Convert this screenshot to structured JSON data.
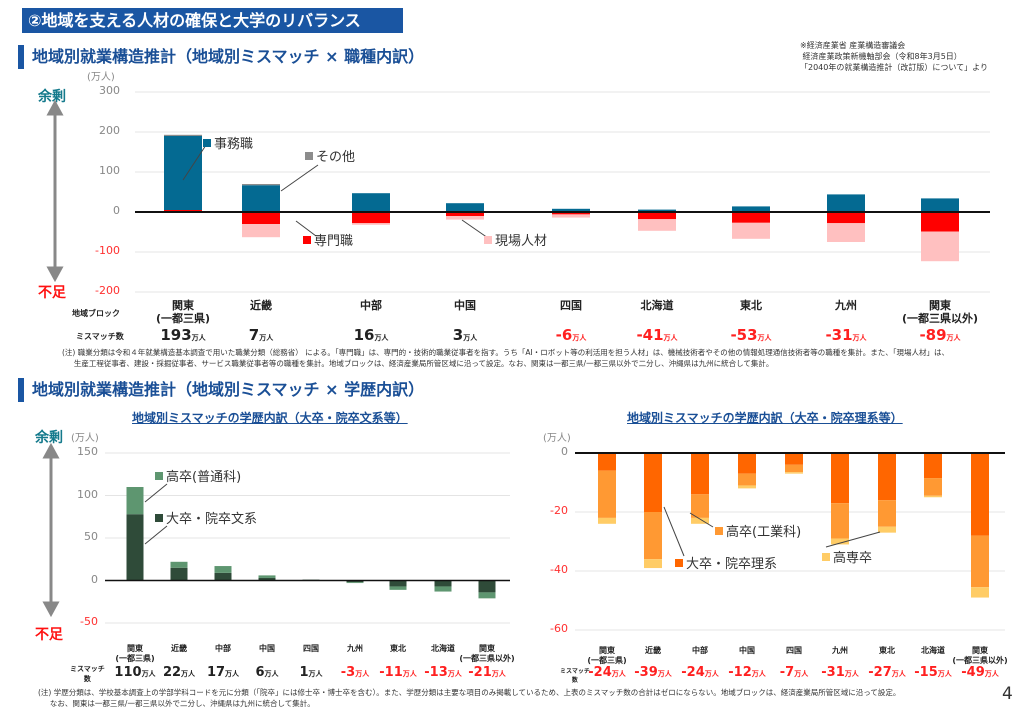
{
  "banner": "②地域を支える人材の確保と大学のリバランス",
  "source_note": "※経済産業省 産業構造審議会\n 経済産業政策新機軸部会（令和8年3月5日）\n「2040年の就業構造推計（改訂版）について」より",
  "surplus_label": "余剰",
  "shortage_label": "不足",
  "unit_label": "(万人)",
  "mismatch_unit": "万人",
  "page_number": "4",
  "section1": {
    "title": "地域別就業構造推計（地域別ミスマッチ × 職種内訳）",
    "region_row_label": "地域ブロック",
    "mismatch_row_label": "ミスマッチ数",
    "note": "(注) 職業分類は令和４年就業構造基本調査で用いた職業分類（総務省） による。「専門職」は、専門的・技術的職業従事者を指す。うち「AI・ロボット等の利活用を担う人材」は、機械技術者やその他の情報処理通信技術者等の職種を集計。また、「現場人材」は、\n     生産工程従事者、建設・採掘従事者、サービス職業従事者等の職種を集計。地域ブロックは、経済産業局所管区域に沿って設定。なお、関東は一都三県/一都三県以外で二分し、沖縄県は九州に統合して集計。"
  },
  "section2": {
    "title": "地域別就業構造推計（地域別ミスマッチ × 学歴内訳）",
    "mismatch_row_label": "ミスマッチ\n数",
    "note": "(注) 学歴分類は、学校基本調査上の学部学科コードを元に分類（「院卒」には修士卒・博士卒を含む）。また、学歴分類は主要な項目のみ掲載しているため、上表のミスマッチ数の合計はゼロにならない。地域ブロックは、経済産業局所管区域に沿って設定。\n     なお、関東は一都三県/一都三県以外で二分し、沖縄県は九州に統合して集計。"
  },
  "chart_data": [
    {
      "type": "bar",
      "stacked": true,
      "title": "",
      "ylabel": "(万人)",
      "ylim": [
        -200,
        300
      ],
      "yticks": [
        300,
        200,
        100,
        0,
        -100,
        -200
      ],
      "grid": true,
      "categories": [
        "関東\n(一都三県)",
        "近畿",
        "中部",
        "中国",
        "四国",
        "北海道",
        "東北",
        "九州",
        "関東\n(一都三県以外)"
      ],
      "series": [
        {
          "name": "専門職",
          "color": "#ff0000",
          "values": [
            5,
            -30,
            -28,
            -10,
            -6,
            -18,
            -27,
            -28,
            -49
          ]
        },
        {
          "name": "事務職",
          "color": "#046a92",
          "values": [
            185,
            67,
            47,
            22,
            8,
            6,
            14,
            44,
            34
          ]
        },
        {
          "name": "その他",
          "color": "#8c8c8c",
          "values": [
            3,
            3,
            0,
            0,
            0,
            0,
            0,
            0,
            0
          ]
        },
        {
          "name": "現場人材",
          "color": "#ffc0c0",
          "values": [
            0,
            -33,
            -4,
            -9,
            -8,
            -29,
            -40,
            -47,
            -74
          ]
        }
      ],
      "mismatch_totals": [
        193,
        7,
        16,
        3,
        -6,
        -41,
        -53,
        -31,
        -89
      ]
    },
    {
      "type": "bar",
      "stacked": true,
      "title": "地域別ミスマッチの学歴内訳（大卒・院卒文系等）",
      "ylabel": "(万人)",
      "ylim": [
        -50,
        150
      ],
      "yticks": [
        150,
        100,
        50,
        0,
        -50
      ],
      "grid": true,
      "categories": [
        "関東\n(一都三県)",
        "近畿",
        "中部",
        "中国",
        "四国",
        "九州",
        "東北",
        "北海道",
        "関東\n(一都三県以外)"
      ],
      "series": [
        {
          "name": "大卒・院卒文系",
          "color": "#2f4b39",
          "values": [
            78,
            15,
            9,
            3,
            1,
            -2,
            -7,
            -7,
            -14
          ]
        },
        {
          "name": "高卒(普通科)",
          "color": "#5e9670",
          "values": [
            32,
            7,
            8,
            3,
            0,
            -1,
            -4,
            -6,
            -7
          ]
        }
      ],
      "mismatch_totals": [
        110,
        22,
        17,
        6,
        1,
        -3,
        -11,
        -13,
        -21
      ]
    },
    {
      "type": "bar",
      "stacked": true,
      "title": "地域別ミスマッチの学歴内訳（大卒・院卒理系等）",
      "ylabel": "(万人)",
      "ylim": [
        -60,
        0
      ],
      "yticks": [
        0,
        -20,
        -40,
        -60
      ],
      "grid": true,
      "categories": [
        "関東\n(一都三県)",
        "近畿",
        "中部",
        "中国",
        "四国",
        "九州",
        "東北",
        "北海道",
        "関東\n(一都三県以外)"
      ],
      "series": [
        {
          "name": "大卒・院卒理系",
          "color": "#ff6600",
          "values": [
            -6,
            -20,
            -14,
            -7,
            -4,
            -17,
            -16,
            -8.5,
            -28
          ]
        },
        {
          "name": "高卒(工業科)",
          "color": "#ff9933",
          "values": [
            -16,
            -16,
            -8,
            -4,
            -2.5,
            -12,
            -9,
            -6,
            -17.5
          ]
        },
        {
          "name": "高専卒",
          "color": "#ffcc66",
          "values": [
            -2,
            -3,
            -2,
            -1,
            -0.5,
            -2,
            -2,
            -0.5,
            -3.5
          ]
        }
      ],
      "mismatch_totals": [
        -24,
        -39,
        -24,
        -12,
        -7,
        -31,
        -27,
        -15,
        -49
      ]
    }
  ]
}
